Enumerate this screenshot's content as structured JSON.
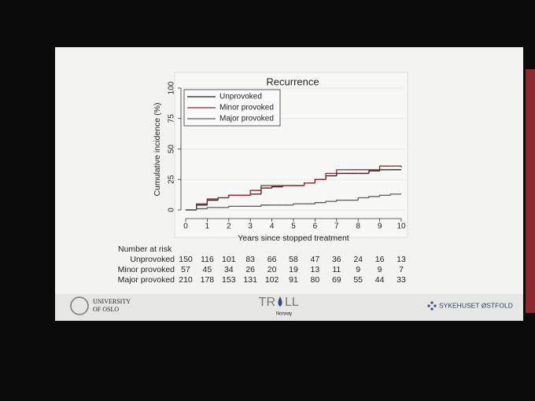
{
  "chart_data": {
    "type": "step",
    "title": "Recurrence",
    "xlabel": "Years since stopped treatment",
    "ylabel": "Cumulative incidence (%)",
    "x": [
      0,
      0.5,
      1,
      1.5,
      2,
      2.5,
      3,
      3.5,
      4,
      4.5,
      5,
      5.5,
      6,
      6.5,
      7,
      7.5,
      8,
      8.5,
      9,
      9.5,
      10
    ],
    "series": [
      {
        "name": "Unprovoked",
        "color": "#1c1c1c",
        "values": [
          0,
          4,
          8,
          10,
          12,
          12,
          13,
          18,
          19,
          20,
          20,
          22,
          25,
          28,
          30,
          30,
          30,
          32,
          33,
          33,
          33
        ]
      },
      {
        "name": "Minor provoked",
        "color": "#8a2b2b",
        "values": [
          0,
          5,
          9,
          10,
          12,
          12,
          16,
          20,
          20,
          20,
          20,
          22,
          25,
          30,
          33,
          33,
          33,
          33,
          36,
          36,
          35
        ]
      },
      {
        "name": "Major provoked",
        "color": "#5a5a5a",
        "values": [
          0,
          1,
          2,
          2,
          3,
          3,
          3,
          4,
          4,
          4,
          5,
          5,
          6,
          7,
          8,
          8,
          10,
          11,
          12,
          13,
          13
        ]
      }
    ],
    "xlim": [
      0,
      10
    ],
    "xticks": [
      0,
      1,
      2,
      3,
      4,
      5,
      6,
      7,
      8,
      9,
      10
    ],
    "ylim": [
      0,
      100
    ],
    "yticks": [
      0,
      25,
      50,
      75,
      100
    ],
    "grid": true,
    "legend": "upper left",
    "risk_table": {
      "title": "Number at risk",
      "rows": [
        {
          "name": "Unprovoked",
          "values": [
            150,
            116,
            101,
            83,
            66,
            58,
            47,
            36,
            24,
            16,
            13
          ]
        },
        {
          "name": "Minor provoked",
          "values": [
            57,
            45,
            34,
            26,
            20,
            19,
            13,
            11,
            9,
            9,
            7
          ]
        },
        {
          "name": "Major provoked",
          "values": [
            210,
            178,
            153,
            131,
            102,
            91,
            80,
            69,
            55,
            44,
            33
          ]
        }
      ]
    }
  },
  "footer": {
    "university": [
      "UNIVERSITY",
      "OF OSLO"
    ],
    "logo_left": "TR",
    "logo_right": "LL",
    "logo_sub": "Norway",
    "hospital": "SYKEHUSET ØSTFOLD"
  }
}
